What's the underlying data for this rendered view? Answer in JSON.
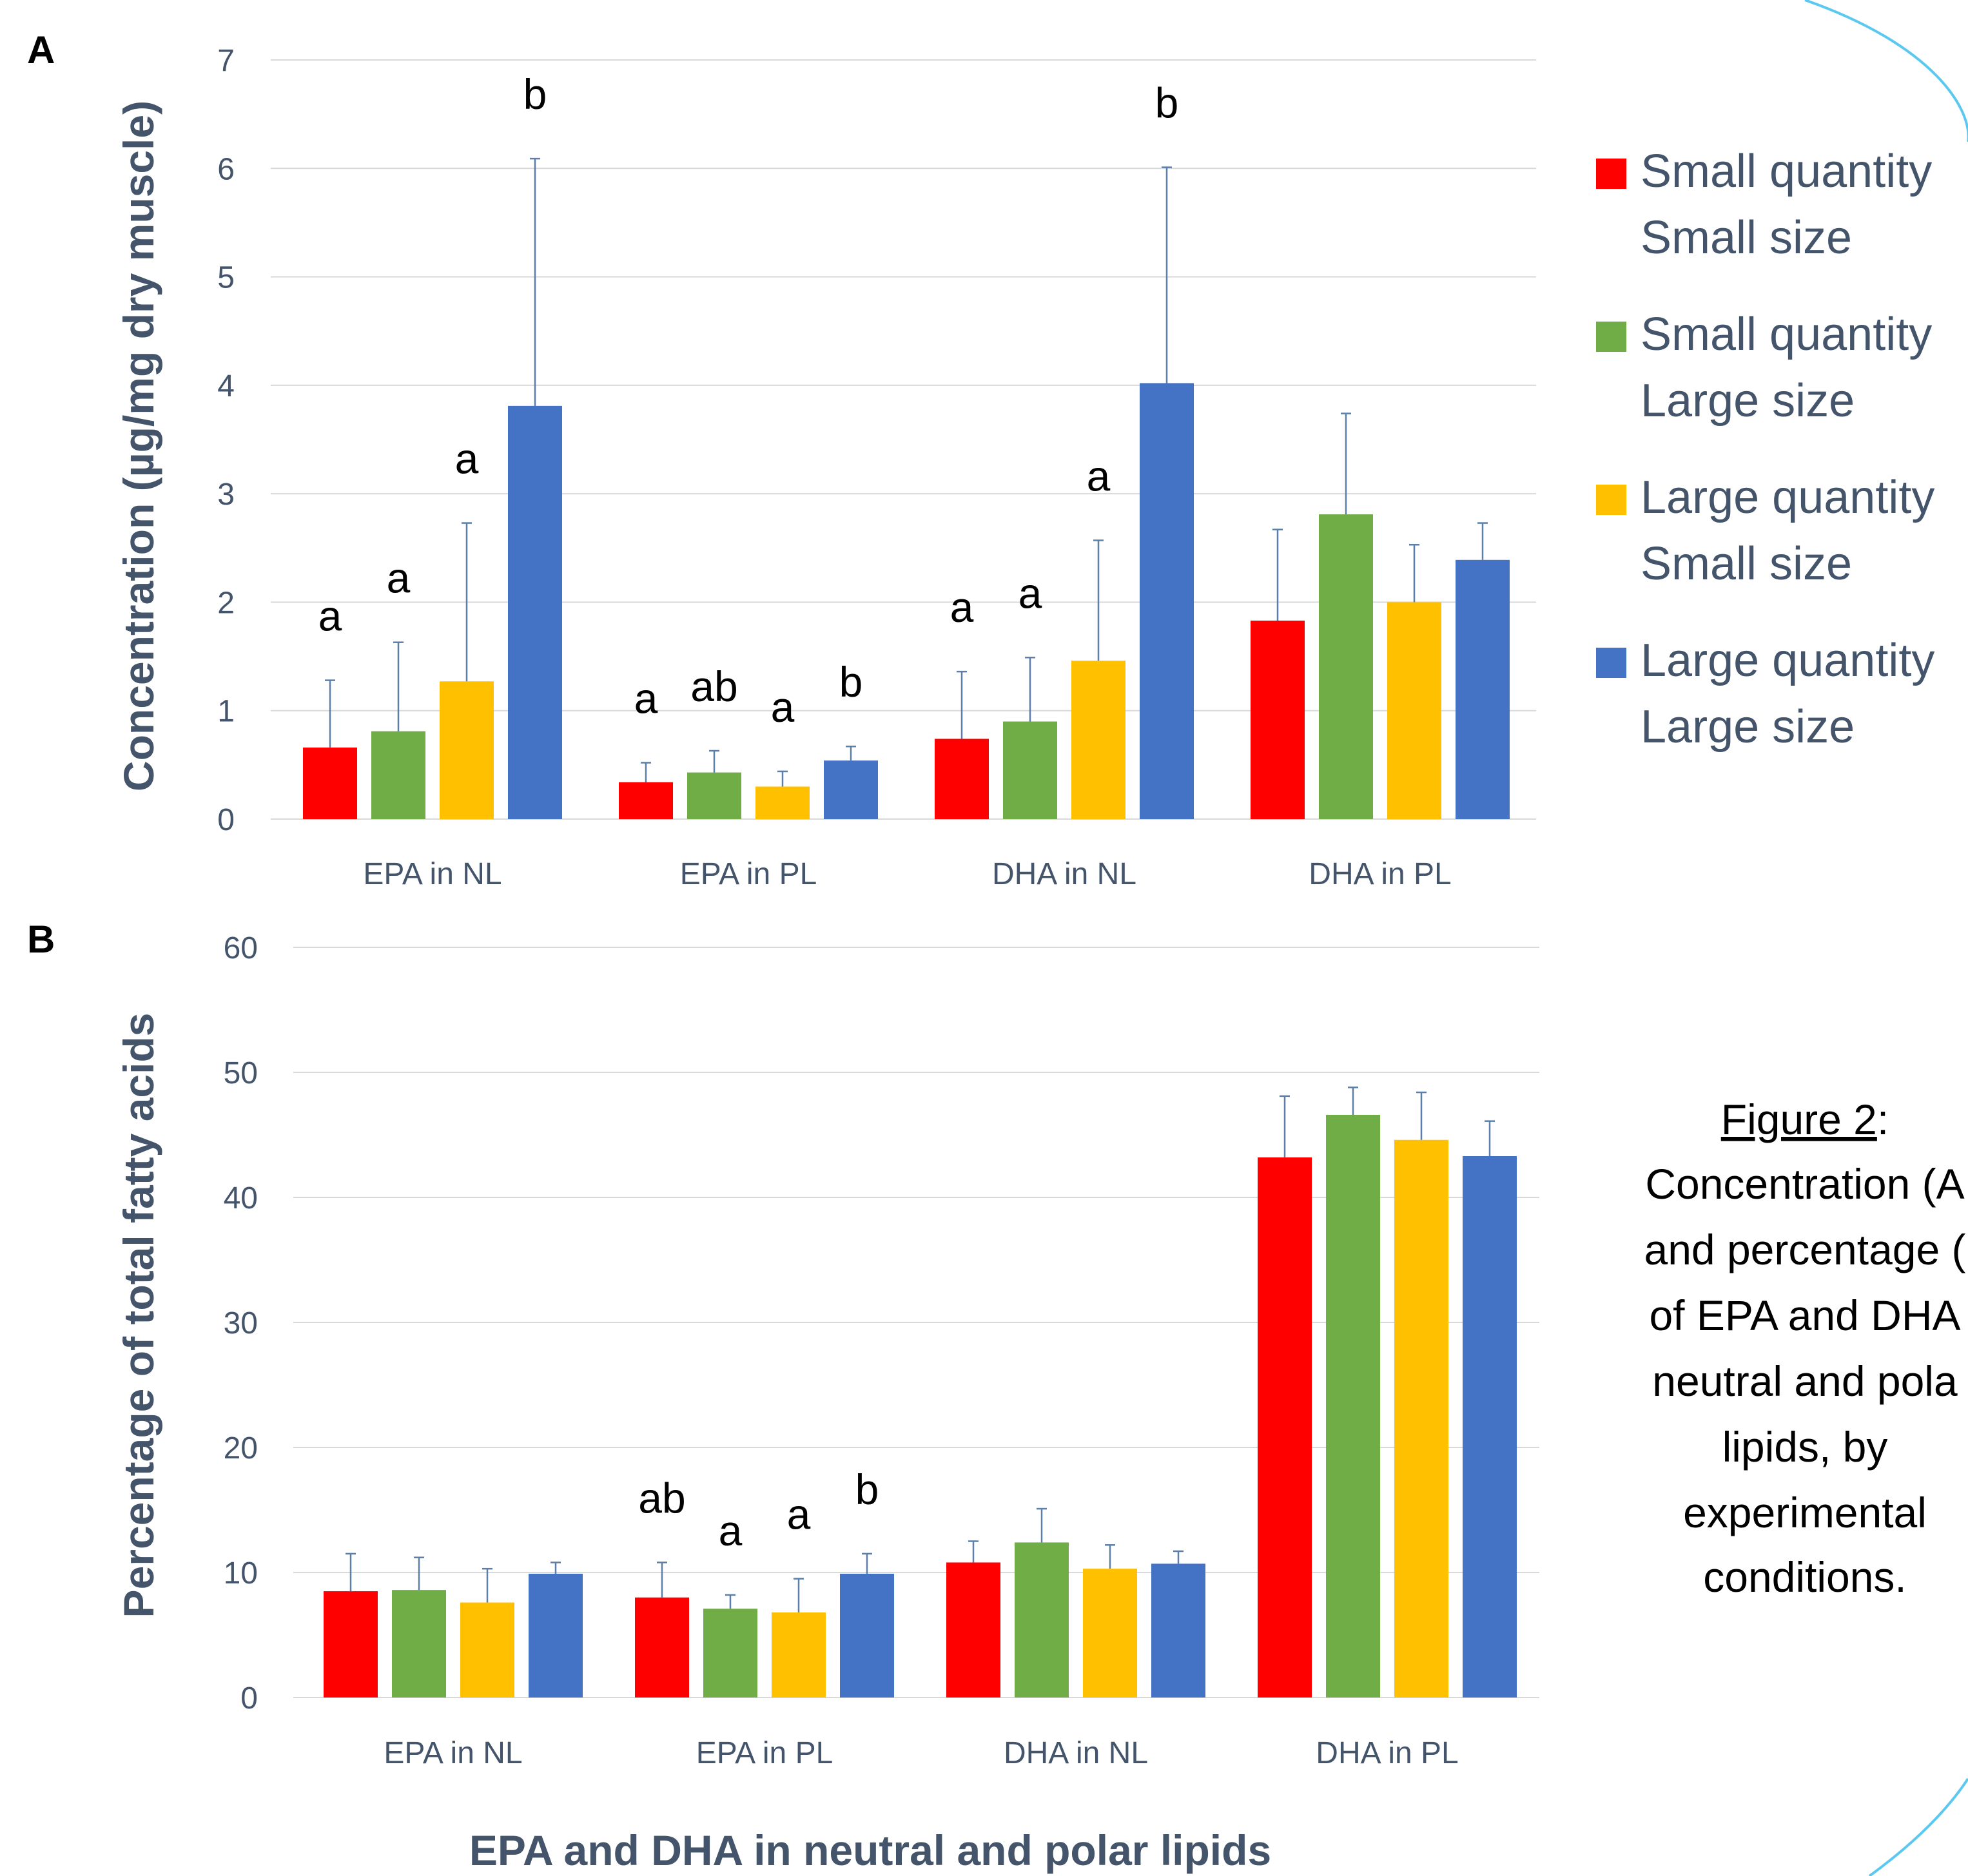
{
  "colors": {
    "series": [
      "#FF0000",
      "#70AD47",
      "#FFC000",
      "#4472C4"
    ],
    "axis_text": "#44546A",
    "error_bar": "#5B7FA8",
    "decor_arc": "#5BC8F0"
  },
  "legend": [
    {
      "line1": "Small quantity",
      "line2": "Small size"
    },
    {
      "line1": "Small quantity",
      "line2": "Large size"
    },
    {
      "line1": "Large quantity",
      "line2": "Small size"
    },
    {
      "line1": "Large quantity",
      "line2": "Large size"
    }
  ],
  "caption": {
    "title": "Figure 2",
    "colon": ":",
    "lines": [
      "Concentration (A",
      "and percentage (",
      "of EPA and DHA",
      "neutral and pola",
      "lipids, by",
      "experimental",
      "conditions."
    ]
  },
  "x_axis_title": "EPA and DHA in neutral and polar lipids",
  "chart_data": [
    {
      "panel": "A",
      "type": "bar",
      "ylabel": "Concentration (µg/mg dry muscle)",
      "ylim": [
        0,
        7
      ],
      "yticks": [
        "0",
        "1",
        "2",
        "3",
        "4",
        "5",
        "6",
        "7"
      ],
      "categories": [
        "EPA in NL",
        "EPA in PL",
        "DHA in NL",
        "DHA in PL"
      ],
      "grid": true,
      "legend_position": "right",
      "series": [
        {
          "name": "Small quantity Small size",
          "values": [
            0.66,
            0.34,
            0.74,
            1.83
          ],
          "errors": [
            0.62,
            0.18,
            0.62,
            0.84
          ],
          "labels": [
            "a",
            "a",
            "a",
            ""
          ]
        },
        {
          "name": "Small quantity Large size",
          "values": [
            0.81,
            0.43,
            0.9,
            2.81
          ],
          "errors": [
            0.82,
            0.2,
            0.59,
            0.93
          ],
          "labels": [
            "a",
            "ab",
            "a",
            ""
          ]
        },
        {
          "name": "Large quantity Small size",
          "values": [
            1.27,
            0.3,
            1.46,
            2.0
          ],
          "errors": [
            1.46,
            0.14,
            1.11,
            0.53
          ],
          "labels": [
            "a",
            "a",
            "a",
            ""
          ]
        },
        {
          "name": "Large quantity Large size",
          "values": [
            3.81,
            0.54,
            4.02,
            2.39
          ],
          "errors": [
            2.28,
            0.13,
            1.99,
            0.34
          ],
          "labels": [
            "b",
            "b",
            "b",
            ""
          ]
        }
      ]
    },
    {
      "panel": "B",
      "type": "bar",
      "ylabel": "Percentage of total fatty acids",
      "ylim": [
        0,
        60
      ],
      "yticks": [
        "0",
        "10",
        "20",
        "30",
        "40",
        "50",
        "60"
      ],
      "categories": [
        "EPA in NL",
        "EPA in PL",
        "DHA in NL",
        "DHA in PL"
      ],
      "grid": true,
      "series": [
        {
          "name": "Small quantity Small size",
          "values": [
            8.5,
            8.0,
            10.8,
            43.2
          ],
          "errors": [
            3.0,
            2.8,
            1.7,
            4.9
          ],
          "labels": [
            "",
            "ab",
            "",
            ""
          ]
        },
        {
          "name": "Small quantity Large size",
          "values": [
            8.6,
            7.1,
            12.4,
            46.6
          ],
          "errors": [
            2.6,
            1.1,
            2.7,
            2.2
          ],
          "labels": [
            "",
            "a",
            "",
            ""
          ]
        },
        {
          "name": "Large quantity Small size",
          "values": [
            7.6,
            6.8,
            10.3,
            44.6
          ],
          "errors": [
            2.7,
            2.7,
            1.9,
            3.8
          ],
          "labels": [
            "",
            "a",
            "",
            ""
          ]
        },
        {
          "name": "Large quantity Large size",
          "values": [
            9.9,
            9.9,
            10.7,
            43.3
          ],
          "errors": [
            0.9,
            1.6,
            1.0,
            2.8
          ],
          "labels": [
            "",
            "b",
            "",
            ""
          ]
        }
      ]
    }
  ]
}
